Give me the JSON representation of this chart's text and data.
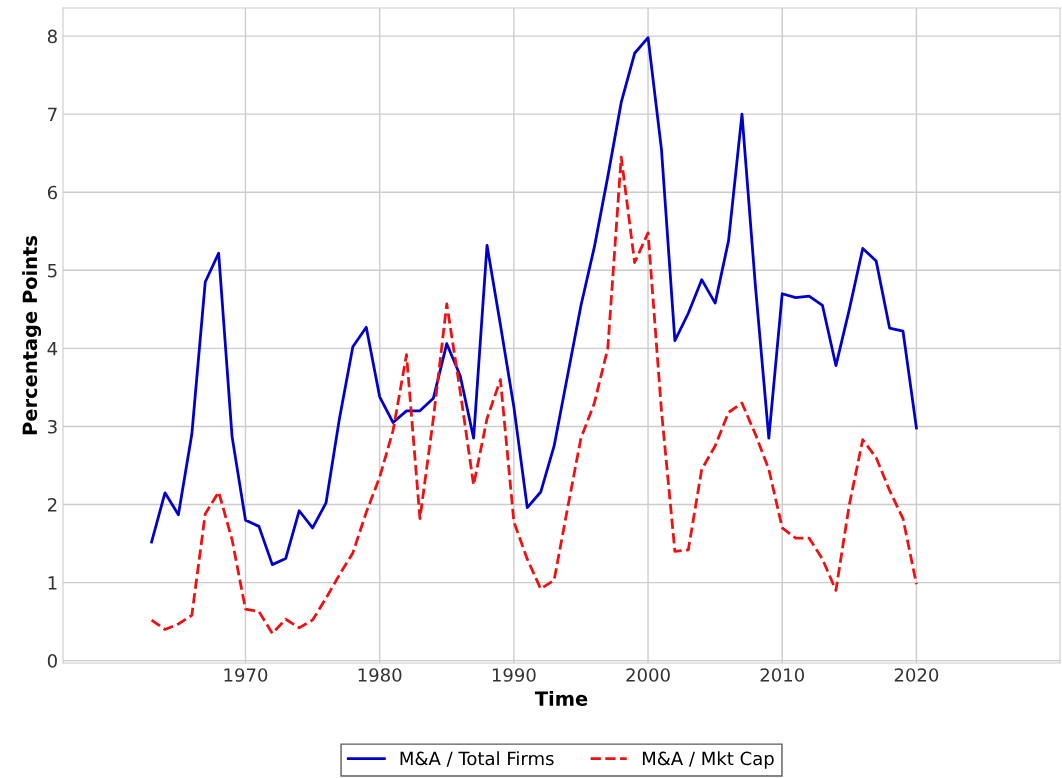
{
  "chart_data": {
    "type": "line",
    "xlabel": "Time",
    "ylabel": "Percentage Points",
    "x": [
      1963,
      1964,
      1965,
      1966,
      1967,
      1968,
      1969,
      1970,
      1971,
      1972,
      1973,
      1974,
      1975,
      1976,
      1977,
      1978,
      1979,
      1980,
      1981,
      1982,
      1983,
      1984,
      1985,
      1986,
      1987,
      1988,
      1989,
      1990,
      1991,
      1992,
      1993,
      1994,
      1995,
      1996,
      1997,
      1998,
      1999,
      2000,
      2001,
      2002,
      2003,
      2004,
      2005,
      2006,
      2007,
      2008,
      2009,
      2010,
      2011,
      2012,
      2013,
      2014,
      2015,
      2016,
      2017,
      2018,
      2019,
      2020
    ],
    "series": [
      {
        "name": "M&A / Total Firms",
        "color": "#0000cc",
        "line_style": "solid",
        "values": [
          1.52,
          2.15,
          1.87,
          2.9,
          4.85,
          5.22,
          2.87,
          1.8,
          1.72,
          1.23,
          1.31,
          1.92,
          1.7,
          2.02,
          3.1,
          4.02,
          4.27,
          3.38,
          3.05,
          3.2,
          3.2,
          3.36,
          4.06,
          3.65,
          2.85,
          5.32,
          4.3,
          3.25,
          1.96,
          2.16,
          2.75,
          3.65,
          4.55,
          5.3,
          6.2,
          7.15,
          7.78,
          7.98,
          6.55,
          4.1,
          4.45,
          4.88,
          4.58,
          5.38,
          7.0,
          4.8,
          2.85,
          4.7,
          4.65,
          4.67,
          4.55,
          3.78,
          4.5,
          5.28,
          5.12,
          4.26,
          4.22,
          2.98
        ]
      },
      {
        "name": "M&A / Mkt Cap",
        "color": "#ee1111",
        "line_style": "dashed",
        "values": [
          0.52,
          0.4,
          0.47,
          0.58,
          1.88,
          2.16,
          1.55,
          0.66,
          0.63,
          0.35,
          0.53,
          0.42,
          0.52,
          0.8,
          1.1,
          1.38,
          1.9,
          2.35,
          2.95,
          3.92,
          1.82,
          3.1,
          4.57,
          3.45,
          2.25,
          3.1,
          3.6,
          1.78,
          1.3,
          0.92,
          1.03,
          1.95,
          2.85,
          3.3,
          4.0,
          6.45,
          5.1,
          5.48,
          3.2,
          1.4,
          1.42,
          2.45,
          2.75,
          3.18,
          3.3,
          2.9,
          2.45,
          1.7,
          1.57,
          1.57,
          1.3,
          0.9,
          2.0,
          2.83,
          2.6,
          2.18,
          1.82,
          0.98
        ]
      }
    ],
    "xlim": [
      1956.4,
      2030.7
    ],
    "xticks": [
      1970,
      1980,
      1990,
      2000,
      2010,
      2020
    ],
    "ylim": [
      -0.03,
      8.36
    ],
    "yticks": [
      0,
      1,
      2,
      3,
      4,
      5,
      6,
      7,
      8
    ],
    "grid": true,
    "legend": "bottom",
    "marker": "none"
  }
}
